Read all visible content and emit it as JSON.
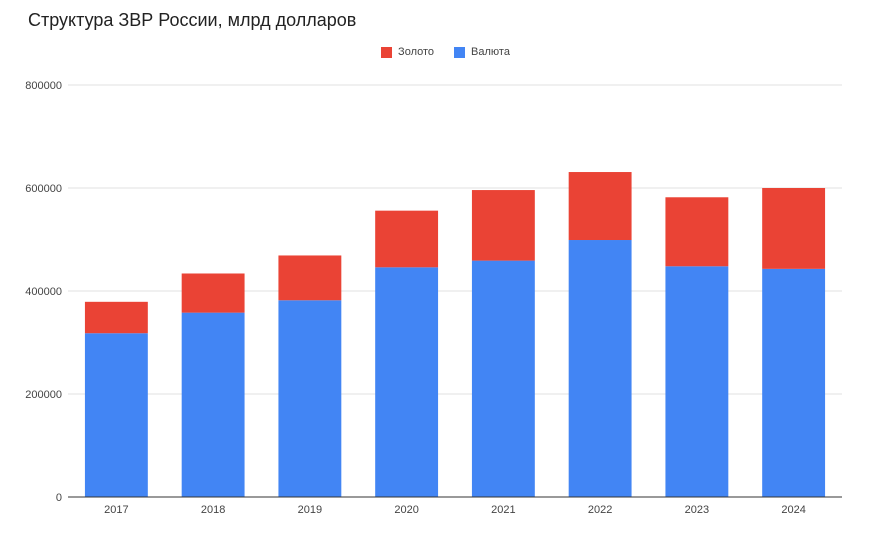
{
  "chart_data": {
    "type": "bar",
    "stacked": true,
    "title": "Структура ЗВР России, млрд долларов",
    "categories": [
      "2017",
      "2018",
      "2019",
      "2020",
      "2021",
      "2022",
      "2023",
      "2024"
    ],
    "series": [
      {
        "name": "Валюта",
        "color": "#4285f4",
        "values": [
          318000,
          358000,
          382000,
          446000,
          459000,
          499000,
          448000,
          443000
        ]
      },
      {
        "name": "Золото",
        "color": "#ea4335",
        "values": [
          61000,
          76000,
          87000,
          110000,
          137000,
          132000,
          134000,
          157000
        ]
      }
    ],
    "legend_order": [
      "Золото",
      "Валюта"
    ],
    "ylim": [
      0,
      800000
    ],
    "yticks": [
      "0",
      "200000",
      "400000",
      "600000",
      "800000"
    ],
    "grid": true,
    "legend_position": "top"
  }
}
